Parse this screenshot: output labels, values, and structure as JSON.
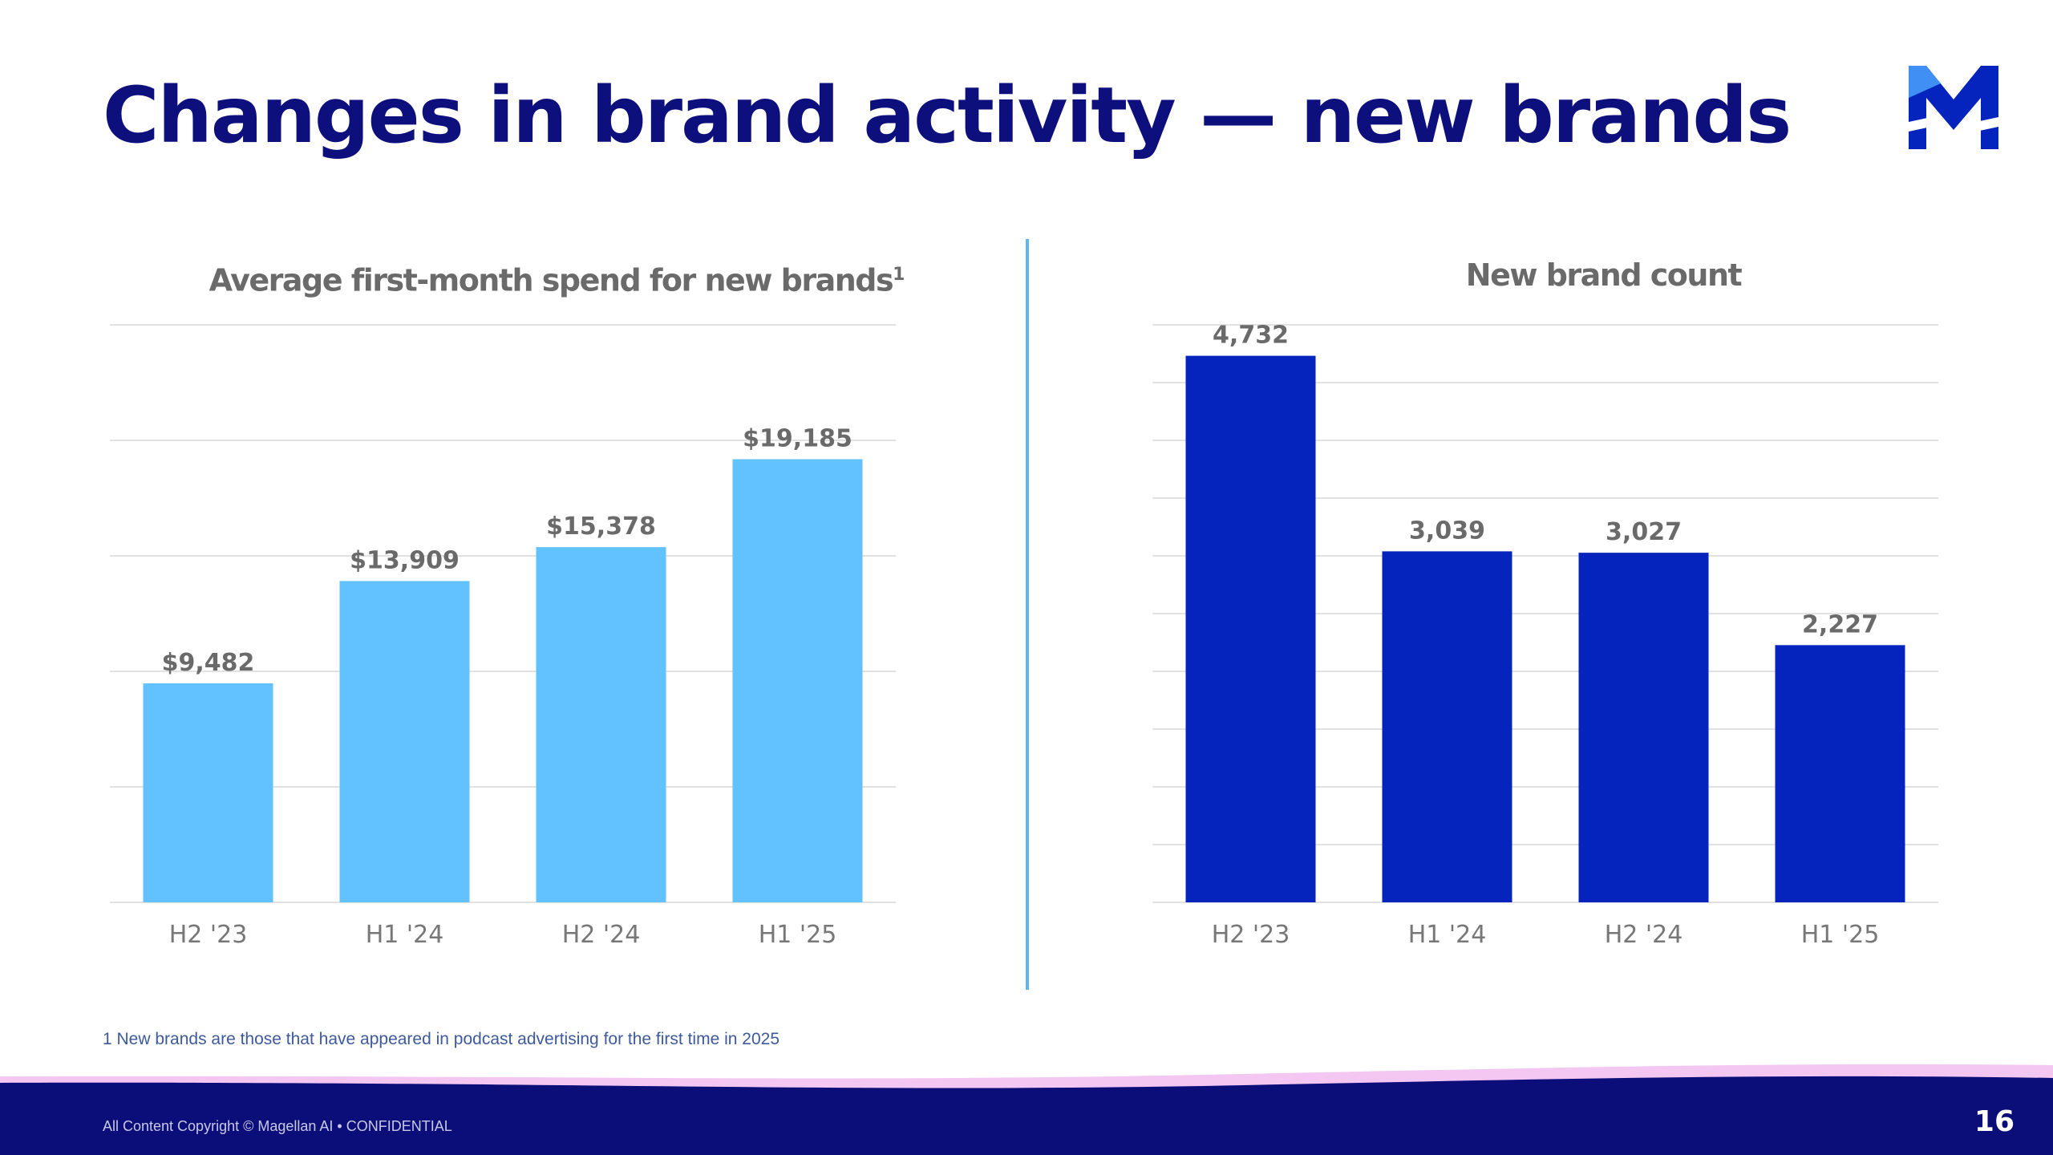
{
  "slide": {
    "title": "Changes in brand activity — new brands",
    "footnote": "1 New brands are those that have appeared in podcast advertising for the first time in 2025",
    "copyright": "All Content Copyright © Magellan AI • CONFIDENTIAL",
    "page_number": "16"
  },
  "colors": {
    "title": "#0d0f7c",
    "left_bars": "#62c2ff",
    "right_bars": "#0424bd",
    "label_text": "#6a6a6a",
    "footer_bg": "#0b0e78",
    "footer_wave": "#f4c6f2"
  },
  "chart_data": [
    {
      "type": "bar",
      "title": "Average first-month spend for new brands",
      "title_superscript": "1",
      "categories": [
        "H2 '23",
        "H1 '24",
        "H2 '24",
        "H1 '25"
      ],
      "values": [
        9482,
        13909,
        15378,
        19185
      ],
      "value_labels": [
        "$9,482",
        "$13,909",
        "$15,378",
        "$19,185"
      ],
      "ylim": [
        0,
        25000
      ],
      "grid": true,
      "bar_color": "#62c2ff"
    },
    {
      "type": "bar",
      "title": "New brand count",
      "categories": [
        "H2 '23",
        "H1 '24",
        "H2 '24",
        "H1 '25"
      ],
      "values": [
        4732,
        3039,
        3027,
        2227
      ],
      "value_labels": [
        "4,732",
        "3,039",
        "3,027",
        "2,227"
      ],
      "ylim": [
        0,
        5000
      ],
      "grid": true,
      "bar_color": "#0424bd"
    }
  ]
}
